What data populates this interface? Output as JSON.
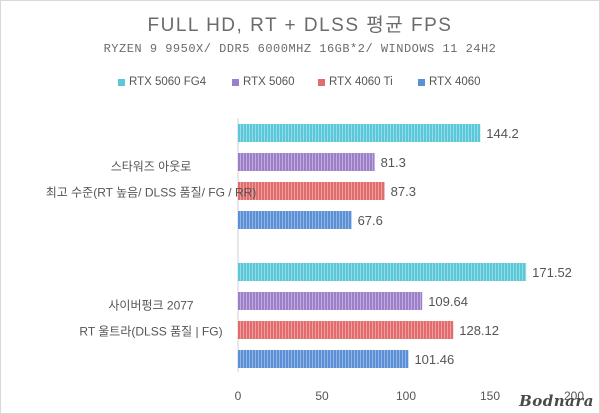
{
  "chart_data": {
    "type": "bar",
    "orientation": "horizontal",
    "title": "FULL HD, RT + DLSS 평균 FPS",
    "subtitle": "RYZEN 9 9950X/ DDR5 6000MHZ 16GB*2/ WINDOWS 11 24H2",
    "categories": [
      [
        "스타워즈 아웃로",
        "최고 수준(RT 높음/ DLSS 품질/ FG / RR)"
      ],
      [
        "사이버펑크 2077",
        "RT 울트라(DLSS 품질 | FG)"
      ]
    ],
    "series": [
      {
        "name": "RTX 5060 FG4",
        "color": "#5bc8d9",
        "values": [
          144.2,
          171.52
        ]
      },
      {
        "name": "RTX 5060",
        "color": "#9d7ec9",
        "values": [
          81.3,
          109.64
        ]
      },
      {
        "name": "RTX 4060 Ti",
        "color": "#e26b6b",
        "values": [
          87.3,
          128.12
        ]
      },
      {
        "name": "RTX 4060",
        "color": "#5b8fd6",
        "values": [
          67.6,
          101.46
        ]
      }
    ],
    "value_labels": [
      [
        "144.2",
        "81.3",
        "87.3",
        "67.6"
      ],
      [
        "171.52",
        "109.64",
        "128.12",
        "101.46"
      ]
    ],
    "xticks": [
      "0",
      "50",
      "100",
      "150",
      "200"
    ],
    "xlim": [
      0,
      200
    ],
    "legend_position": "top",
    "grid": false
  },
  "watermark": "Bodnara"
}
